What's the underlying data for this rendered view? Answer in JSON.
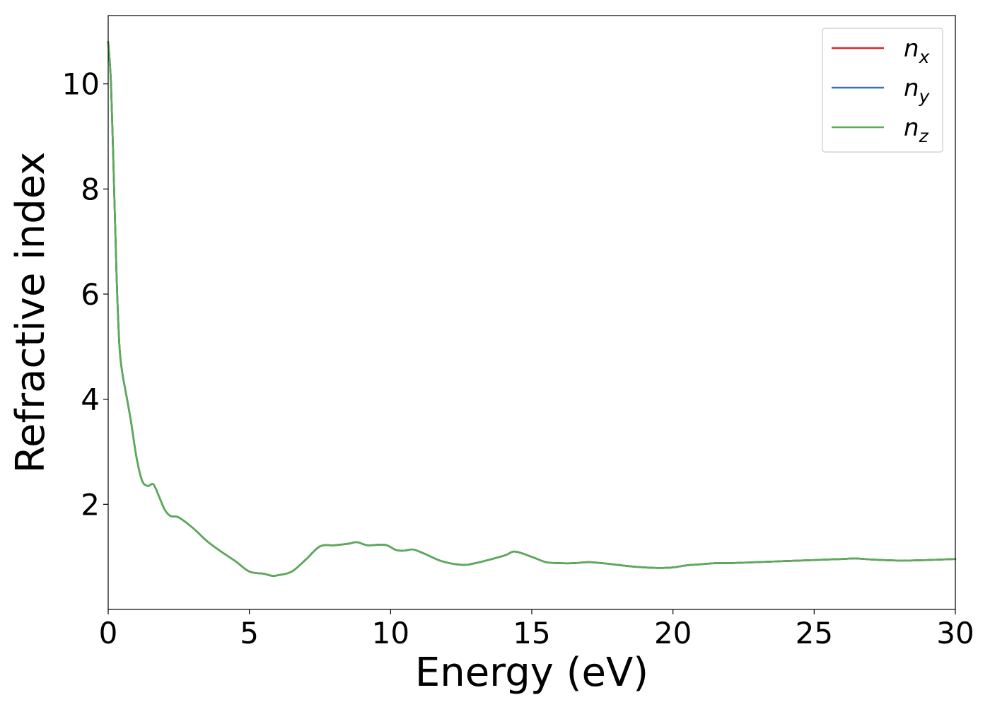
{
  "chart_data": {
    "type": "line",
    "title": "",
    "xlabel": "Energy (eV)",
    "ylabel": "Refractive index",
    "xlim": [
      0,
      30
    ],
    "ylim": [
      0,
      11.3
    ],
    "xticks": [
      "0",
      "5",
      "10",
      "15",
      "20",
      "25",
      "30"
    ],
    "yticks": [
      "2",
      "4",
      "6",
      "8",
      "10"
    ],
    "grid": false,
    "legend_position": "top-right",
    "series": [
      {
        "name": "n_x",
        "legend_base": "n",
        "legend_sub": "x",
        "color": "#d62728",
        "x": [
          0,
          0.1,
          0.2,
          0.3,
          0.4,
          0.5,
          0.6,
          0.8,
          1.0,
          1.2,
          1.4,
          1.6,
          1.8,
          2.0,
          2.2,
          2.5,
          3.0,
          3.5,
          4.0,
          4.5,
          5.0,
          5.5,
          5.8,
          6.0,
          6.5,
          7.0,
          7.5,
          8.0,
          8.5,
          8.8,
          9.2,
          9.8,
          10.2,
          10.5,
          10.8,
          11.2,
          11.8,
          12.5,
          13.0,
          14.0,
          14.4,
          15.0,
          15.5,
          16.0,
          16.5,
          17.0,
          17.5,
          18.0,
          18.5,
          19.0,
          19.5,
          20.0,
          20.5,
          21.0,
          21.5,
          22.0,
          22.5,
          23.0,
          24.0,
          25.0,
          26.0,
          26.5,
          27.0,
          28.0,
          29.0,
          30.0
        ],
        "y": [
          10.8,
          10.0,
          8.2,
          6.3,
          5.0,
          4.5,
          4.2,
          3.6,
          2.9,
          2.45,
          2.35,
          2.38,
          2.15,
          1.9,
          1.78,
          1.75,
          1.55,
          1.3,
          1.1,
          0.92,
          0.72,
          0.68,
          0.64,
          0.65,
          0.72,
          0.95,
          1.2,
          1.22,
          1.25,
          1.28,
          1.22,
          1.23,
          1.13,
          1.12,
          1.14,
          1.06,
          0.92,
          0.85,
          0.88,
          1.02,
          1.1,
          1.0,
          0.9,
          0.88,
          0.88,
          0.9,
          0.88,
          0.85,
          0.82,
          0.8,
          0.79,
          0.8,
          0.84,
          0.86,
          0.88,
          0.88,
          0.89,
          0.9,
          0.92,
          0.94,
          0.96,
          0.97,
          0.95,
          0.93,
          0.94,
          0.96
        ]
      },
      {
        "name": "n_y",
        "legend_base": "n",
        "legend_sub": "y",
        "color": "#3b75af",
        "x": [
          0,
          0.1,
          0.2,
          0.3,
          0.4,
          0.5,
          0.6,
          0.8,
          1.0,
          1.2,
          1.4,
          1.6,
          1.8,
          2.0,
          2.2,
          2.5,
          3.0,
          3.5,
          4.0,
          4.5,
          5.0,
          5.5,
          5.8,
          6.0,
          6.5,
          7.0,
          7.5,
          8.0,
          8.5,
          8.8,
          9.2,
          9.8,
          10.2,
          10.5,
          10.8,
          11.2,
          11.8,
          12.5,
          13.0,
          14.0,
          14.4,
          15.0,
          15.5,
          16.0,
          16.5,
          17.0,
          17.5,
          18.0,
          18.5,
          19.0,
          19.5,
          20.0,
          20.5,
          21.0,
          21.5,
          22.0,
          22.5,
          23.0,
          24.0,
          25.0,
          26.0,
          26.5,
          27.0,
          28.0,
          29.0,
          30.0
        ],
        "y": [
          10.8,
          10.0,
          8.2,
          6.3,
          5.0,
          4.5,
          4.2,
          3.6,
          2.9,
          2.45,
          2.35,
          2.38,
          2.15,
          1.9,
          1.78,
          1.75,
          1.55,
          1.3,
          1.1,
          0.92,
          0.72,
          0.68,
          0.64,
          0.65,
          0.72,
          0.95,
          1.2,
          1.22,
          1.25,
          1.28,
          1.22,
          1.23,
          1.13,
          1.12,
          1.14,
          1.06,
          0.92,
          0.85,
          0.88,
          1.02,
          1.1,
          1.0,
          0.9,
          0.88,
          0.88,
          0.9,
          0.88,
          0.85,
          0.82,
          0.8,
          0.79,
          0.8,
          0.84,
          0.86,
          0.88,
          0.88,
          0.89,
          0.9,
          0.92,
          0.94,
          0.96,
          0.97,
          0.95,
          0.93,
          0.94,
          0.96
        ]
      },
      {
        "name": "n_z",
        "legend_base": "n",
        "legend_sub": "z",
        "color": "#5aac56",
        "x": [
          0,
          0.1,
          0.2,
          0.3,
          0.4,
          0.5,
          0.6,
          0.8,
          1.0,
          1.2,
          1.4,
          1.6,
          1.8,
          2.0,
          2.2,
          2.5,
          3.0,
          3.5,
          4.0,
          4.5,
          5.0,
          5.5,
          5.8,
          6.0,
          6.5,
          7.0,
          7.5,
          8.0,
          8.5,
          8.8,
          9.2,
          9.8,
          10.2,
          10.5,
          10.8,
          11.2,
          11.8,
          12.5,
          13.0,
          14.0,
          14.4,
          15.0,
          15.5,
          16.0,
          16.5,
          17.0,
          17.5,
          18.0,
          18.5,
          19.0,
          19.5,
          20.0,
          20.5,
          21.0,
          21.5,
          22.0,
          22.5,
          23.0,
          24.0,
          25.0,
          26.0,
          26.5,
          27.0,
          28.0,
          29.0,
          30.0
        ],
        "y": [
          10.8,
          10.0,
          8.2,
          6.3,
          5.0,
          4.5,
          4.2,
          3.6,
          2.9,
          2.45,
          2.35,
          2.38,
          2.15,
          1.9,
          1.78,
          1.75,
          1.55,
          1.3,
          1.1,
          0.92,
          0.72,
          0.68,
          0.64,
          0.65,
          0.72,
          0.95,
          1.2,
          1.22,
          1.25,
          1.28,
          1.22,
          1.23,
          1.13,
          1.12,
          1.14,
          1.06,
          0.92,
          0.85,
          0.88,
          1.02,
          1.1,
          1.0,
          0.9,
          0.88,
          0.88,
          0.9,
          0.88,
          0.85,
          0.82,
          0.8,
          0.79,
          0.8,
          0.84,
          0.86,
          0.88,
          0.88,
          0.89,
          0.9,
          0.92,
          0.94,
          0.96,
          0.97,
          0.95,
          0.93,
          0.94,
          0.96
        ]
      }
    ]
  }
}
